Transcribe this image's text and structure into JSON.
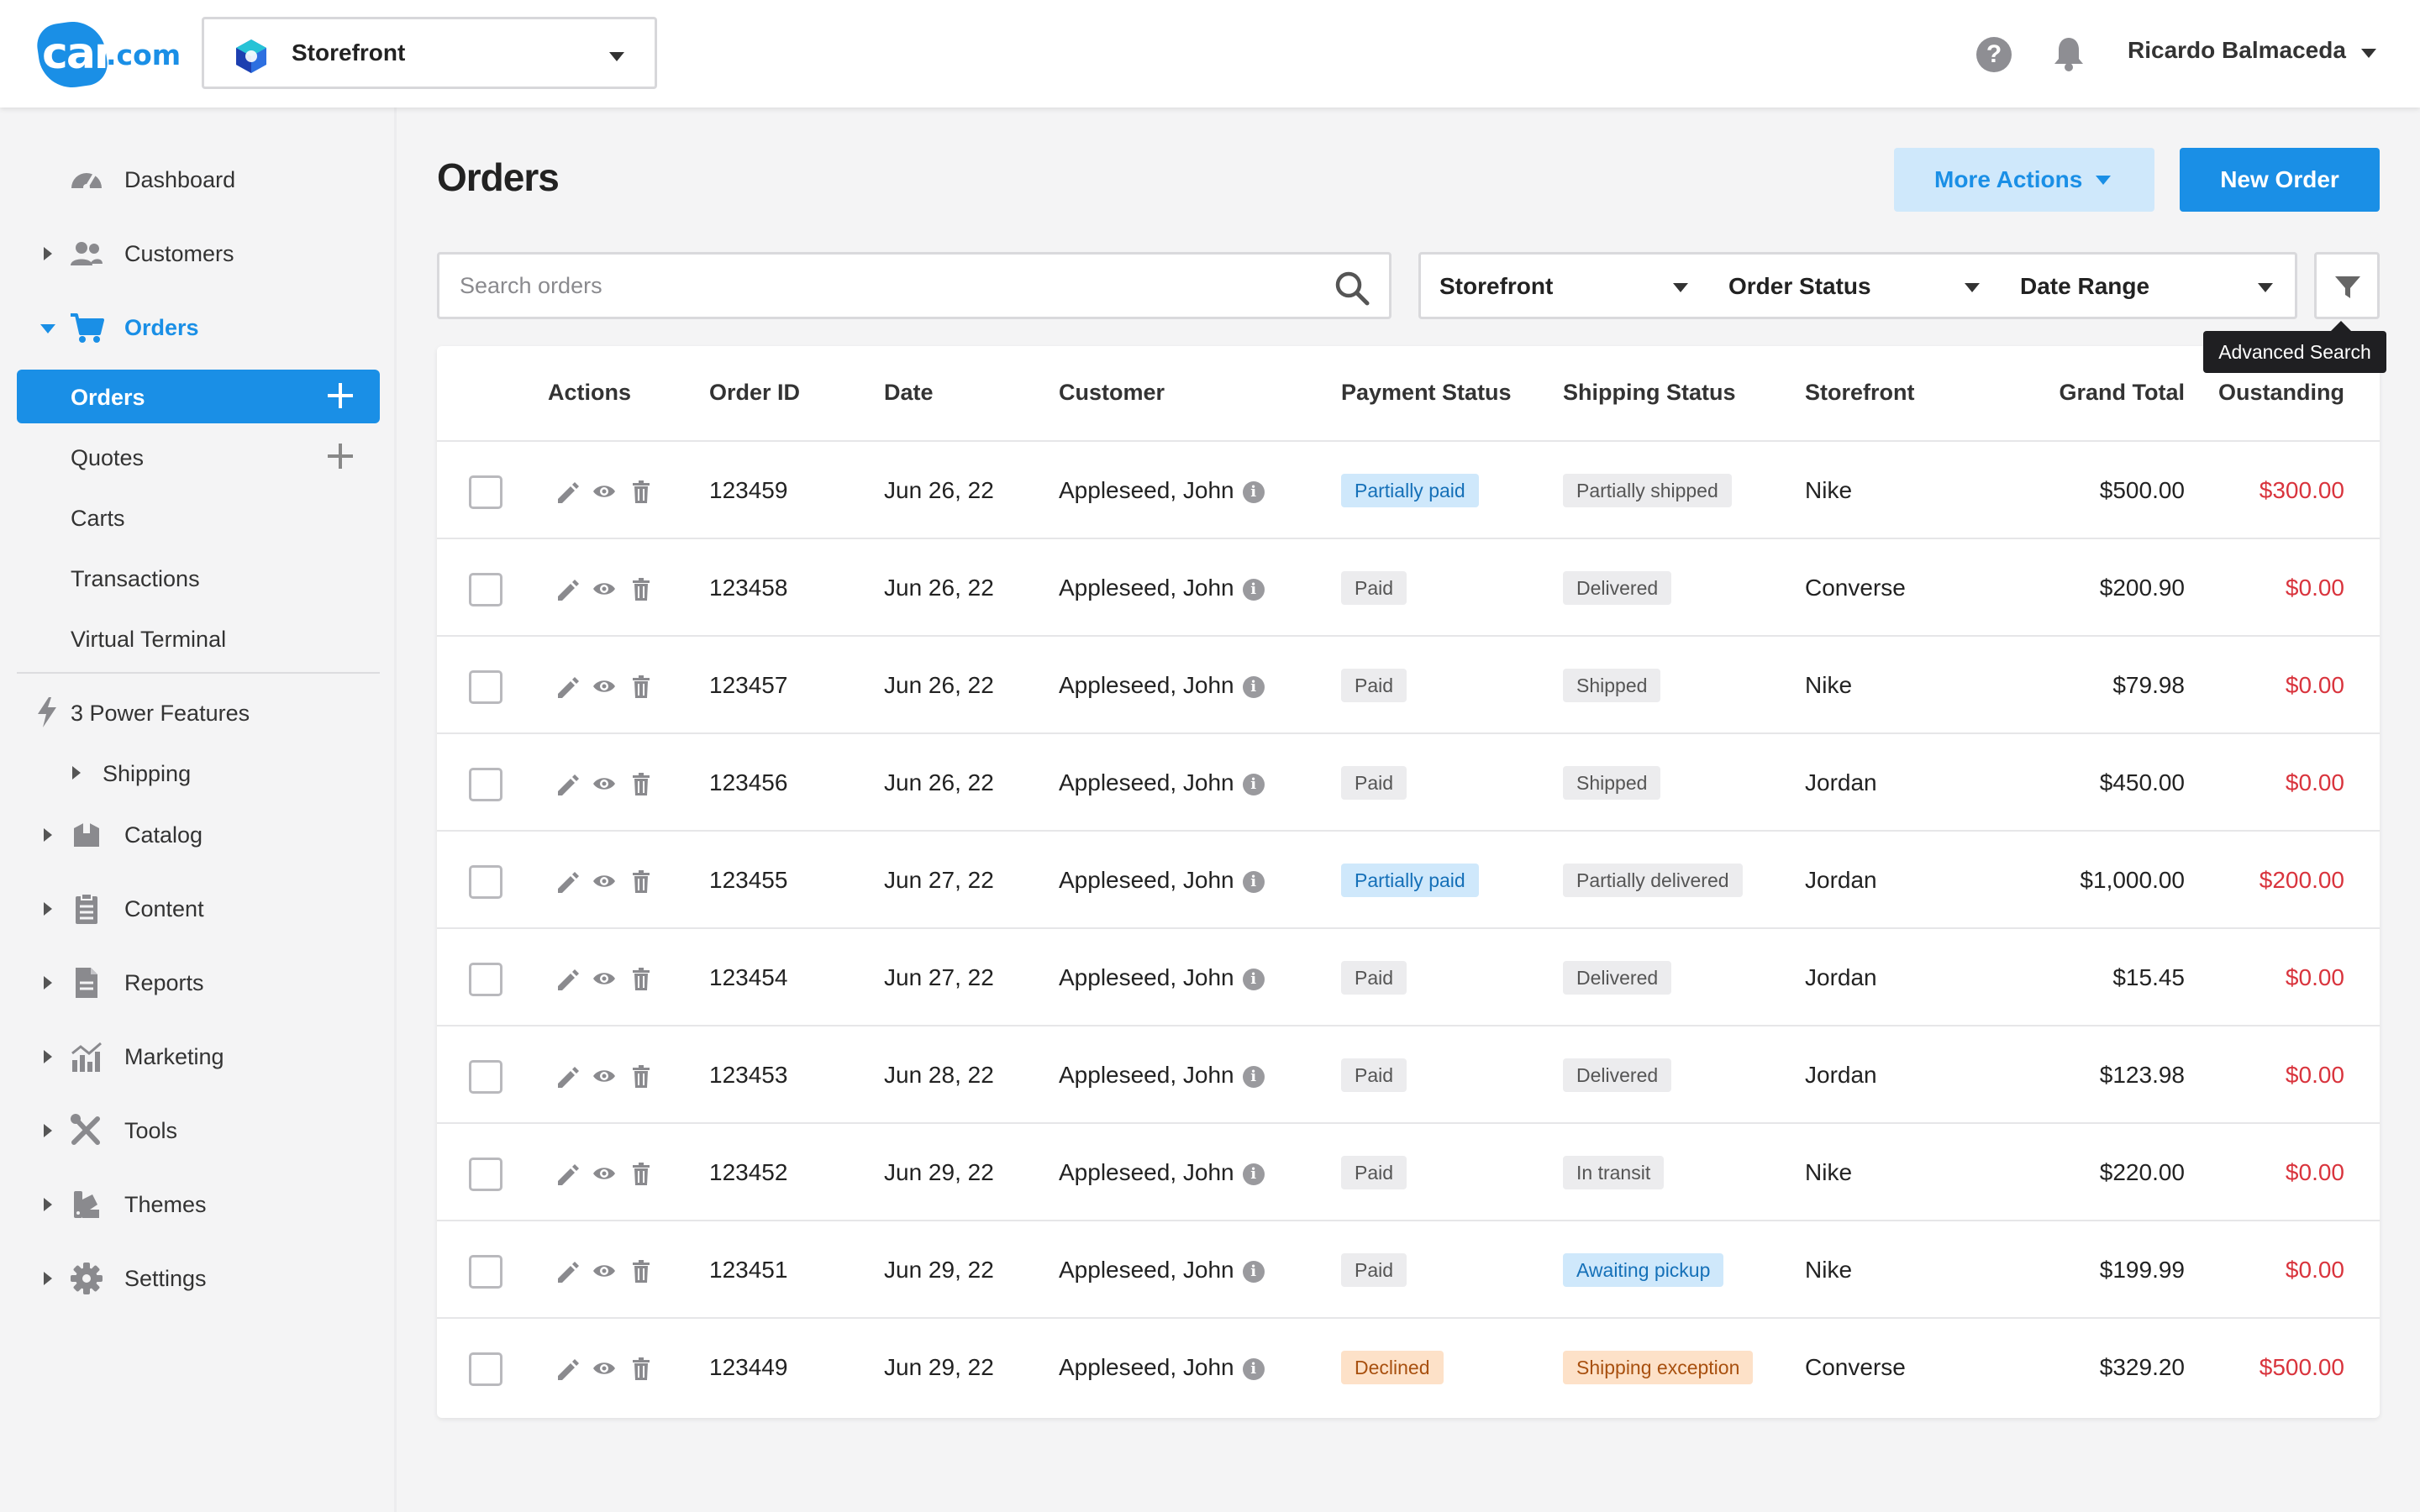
{
  "topbar": {
    "logo_main": "cart",
    "logo_suffix": ".com",
    "storefront": "Storefront",
    "help_icon": "question-circle-icon",
    "bell_icon": "bell-icon",
    "user": "Ricardo Balmaceda"
  },
  "sidebar": {
    "items": [
      {
        "label": "Dashboard",
        "icon": "dashboard-gauge-icon"
      },
      {
        "label": "Customers",
        "icon": "users-icon"
      },
      {
        "label": "Orders",
        "icon": "cart-icon"
      },
      {
        "label": "Catalog",
        "icon": "box-icon"
      },
      {
        "label": "Content",
        "icon": "clipboard-icon"
      },
      {
        "label": "Reports",
        "icon": "document-icon"
      },
      {
        "label": "Marketing",
        "icon": "bar-chart-icon"
      },
      {
        "label": "Tools",
        "icon": "tools-icon"
      },
      {
        "label": "Themes",
        "icon": "themes-icon"
      },
      {
        "label": "Settings",
        "icon": "gear-icon"
      }
    ],
    "orders_sub": [
      "Orders",
      "Quotes",
      "Carts",
      "Transactions",
      "Virtual Terminal"
    ],
    "power_features": "3 Power Features",
    "shipping": "Shipping"
  },
  "main": {
    "title": "Orders",
    "more_actions": "More Actions",
    "new_order": "New Order",
    "search_placeholder": "Search orders",
    "filters": [
      "Storefront",
      "Order Status",
      "Date Range"
    ],
    "advanced_search": "Advanced Search"
  },
  "table": {
    "headers": [
      "Actions",
      "Order ID",
      "Date",
      "Customer",
      "Payment Status",
      "Shipping Status",
      "Storefront",
      "Grand Total",
      "Oustanding"
    ],
    "rows": [
      {
        "id": "123459",
        "date": "Jun 26, 22",
        "customer": "Appleseed, John",
        "payment": "Partially paid",
        "payment_style": "blue",
        "shipping": "Partially shipped",
        "shipping_style": "gray",
        "storefront": "Nike",
        "total": "$500.00",
        "outstanding": "$300.00"
      },
      {
        "id": "123458",
        "date": "Jun 26, 22",
        "customer": "Appleseed, John",
        "payment": "Paid",
        "payment_style": "gray",
        "shipping": "Delivered",
        "shipping_style": "gray",
        "storefront": "Converse",
        "total": "$200.90",
        "outstanding": "$0.00"
      },
      {
        "id": "123457",
        "date": "Jun 26, 22",
        "customer": "Appleseed, John",
        "payment": "Paid",
        "payment_style": "gray",
        "shipping": "Shipped",
        "shipping_style": "gray",
        "storefront": "Nike",
        "total": "$79.98",
        "outstanding": "$0.00"
      },
      {
        "id": "123456",
        "date": "Jun 26, 22",
        "customer": "Appleseed, John",
        "payment": "Paid",
        "payment_style": "gray",
        "shipping": "Shipped",
        "shipping_style": "gray",
        "storefront": "Jordan",
        "total": "$450.00",
        "outstanding": "$0.00"
      },
      {
        "id": "123455",
        "date": "Jun 27, 22",
        "customer": "Appleseed, John",
        "payment": "Partially paid",
        "payment_style": "blue",
        "shipping": "Partially delivered",
        "shipping_style": "gray",
        "storefront": "Jordan",
        "total": "$1,000.00",
        "outstanding": "$200.00"
      },
      {
        "id": "123454",
        "date": "Jun 27, 22",
        "customer": "Appleseed, John",
        "payment": "Paid",
        "payment_style": "gray",
        "shipping": "Delivered",
        "shipping_style": "gray",
        "storefront": "Jordan",
        "total": "$15.45",
        "outstanding": "$0.00"
      },
      {
        "id": "123453",
        "date": "Jun 28, 22",
        "customer": "Appleseed, John",
        "payment": "Paid",
        "payment_style": "gray",
        "shipping": "Delivered",
        "shipping_style": "gray",
        "storefront": "Jordan",
        "total": "$123.98",
        "outstanding": "$0.00"
      },
      {
        "id": "123452",
        "date": "Jun 29, 22",
        "customer": "Appleseed, John",
        "payment": "Paid",
        "payment_style": "gray",
        "shipping": "In transit",
        "shipping_style": "gray",
        "storefront": "Nike",
        "total": "$220.00",
        "outstanding": "$0.00"
      },
      {
        "id": "123451",
        "date": "Jun 29, 22",
        "customer": "Appleseed, John",
        "payment": "Paid",
        "payment_style": "gray",
        "shipping": "Awaiting pickup",
        "shipping_style": "blue",
        "storefront": "Nike",
        "total": "$199.99",
        "outstanding": "$0.00"
      },
      {
        "id": "123449",
        "date": "Jun 29, 22",
        "customer": "Appleseed, John",
        "payment": "Declined",
        "payment_style": "orange",
        "shipping": "Shipping exception",
        "shipping_style": "orange",
        "storefront": "Converse",
        "total": "$329.20",
        "outstanding": "$500.00"
      }
    ]
  },
  "colors": {
    "accent": "#1a8fe6",
    "outstanding": "#d9343d"
  }
}
